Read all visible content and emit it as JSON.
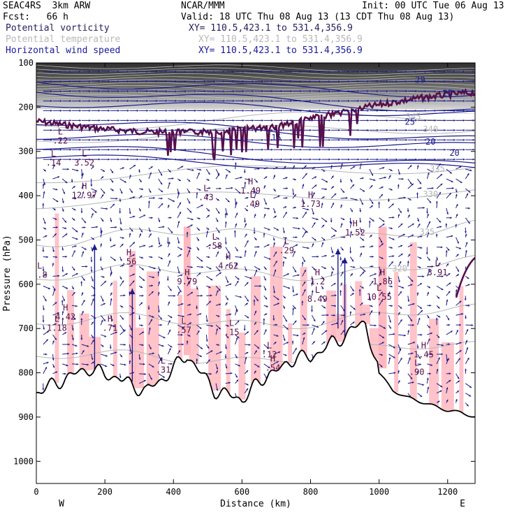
{
  "header": {
    "model": "SEAC4RS  3km ARW",
    "center": "NCAR/MMM",
    "init": "Init: 00 UTC Tue 06 Aug 13",
    "fcst": "Fcst:   66 h",
    "valid": "Valid: 18 UTC Thu 08 Aug 13 (13 CDT Thu 08 Aug 13)",
    "field1": "Potential vorticity",
    "field2": "Potential temperature",
    "field3": "Horizontal wind speed",
    "xy": "XY= 110.5,423.1 to 531.4,356.9"
  },
  "colors": {
    "pv": "#5a0f4a",
    "theta": "#b5b5b5",
    "wind": "#1a1a8c",
    "shade": "#ffb8c0",
    "stratosphere": "#3a3a3a"
  },
  "chart_data": {
    "type": "cross-section",
    "xlabel": "Distance (km)",
    "ylabel": "Pressure (hPa)",
    "xlim": [
      0,
      1280
    ],
    "ylim": [
      1050,
      100
    ],
    "x_ticks": [
      "0",
      "200",
      "400",
      "600",
      "800",
      "1000",
      "1200"
    ],
    "x_tick_values": [
      0,
      200,
      400,
      600,
      800,
      1000,
      1200
    ],
    "y_ticks": [
      "100",
      "200",
      "300",
      "400",
      "500",
      "600",
      "700",
      "800",
      "900",
      "1000"
    ],
    "y_tick_values": [
      100,
      200,
      300,
      400,
      500,
      600,
      700,
      800,
      900,
      1000
    ],
    "west_label": "W",
    "east_label": "E",
    "terrain": {
      "x": [
        0,
        40,
        80,
        120,
        160,
        200,
        240,
        280,
        320,
        360,
        400,
        440,
        480,
        520,
        560,
        600,
        640,
        680,
        720,
        760,
        800,
        840,
        880,
        920,
        960,
        980,
        1000,
        1040,
        1080,
        1120,
        1160,
        1200,
        1240,
        1280
      ],
      "p": [
        845,
        830,
        815,
        800,
        790,
        805,
        810,
        830,
        840,
        820,
        790,
        760,
        800,
        840,
        850,
        860,
        830,
        800,
        790,
        760,
        770,
        740,
        730,
        700,
        690,
        740,
        800,
        840,
        855,
        865,
        875,
        885,
        890,
        900
      ]
    },
    "theta_labels": [
      {
        "x": 1100,
        "p": 228,
        "text": "345"
      },
      {
        "x": 1150,
        "p": 256,
        "text": "340"
      },
      {
        "x": 1170,
        "p": 345,
        "text": "335"
      },
      {
        "x": 1150,
        "p": 403,
        "text": "330"
      },
      {
        "x": 1140,
        "p": 488,
        "text": "325"
      },
      {
        "x": 1060,
        "p": 571,
        "text": "320"
      }
    ],
    "speed_labels": [
      {
        "x": 1120,
        "p": 145,
        "text": "29"
      },
      {
        "x": 1200,
        "p": 175,
        "text": "25"
      },
      {
        "x": 1090,
        "p": 240,
        "text": "25"
      },
      {
        "x": 1150,
        "p": 285,
        "text": "20"
      },
      {
        "x": 1220,
        "p": 310,
        "text": "20"
      },
      {
        "x": 700,
        "p": 275,
        "text": "15"
      }
    ],
    "pv_extrema": [
      {
        "kind": "L",
        "x": 70,
        "p": 282,
        "value": ".22"
      },
      {
        "kind": "L",
        "x": 50,
        "p": 332,
        "value": ".14"
      },
      {
        "kind": "L",
        "x": 140,
        "p": 332,
        "value": "3.52"
      },
      {
        "kind": "H",
        "x": 140,
        "p": 405,
        "value": "12.97"
      },
      {
        "kind": "L",
        "x": 495,
        "p": 410,
        "value": ".43"
      },
      {
        "kind": "H",
        "x": 625,
        "p": 395,
        "value": "1.49"
      },
      {
        "kind": "L",
        "x": 630,
        "p": 425,
        "value": ".49"
      },
      {
        "kind": "H",
        "x": 800,
        "p": 425,
        "value": "1.73"
      },
      {
        "kind": "H",
        "x": 930,
        "p": 490,
        "value": "1.52"
      },
      {
        "kind": "L",
        "x": 520,
        "p": 520,
        "value": ".58"
      },
      {
        "kind": "L",
        "x": 730,
        "p": 530,
        "value": ".29"
      },
      {
        "kind": "H",
        "x": 270,
        "p": 555,
        "value": ".56"
      },
      {
        "kind": "H",
        "x": 560,
        "p": 565,
        "value": "4.62"
      },
      {
        "kind": "L",
        "x": 10,
        "p": 585,
        "value": "4.8"
      },
      {
        "kind": "H",
        "x": 440,
        "p": 600,
        "value": "9.79"
      },
      {
        "kind": "H",
        "x": 820,
        "p": 600,
        "value": "1.2"
      },
      {
        "kind": "L",
        "x": 820,
        "p": 640,
        "value": "8.49"
      },
      {
        "kind": "H",
        "x": 1010,
        "p": 600,
        "value": "1.86"
      },
      {
        "kind": "L",
        "x": 1000,
        "p": 635,
        "value": "10.55"
      },
      {
        "kind": "L",
        "x": 1170,
        "p": 580,
        "value": "3.91"
      },
      {
        "kind": "H",
        "x": 85,
        "p": 680,
        "value": "4.42"
      },
      {
        "kind": "L",
        "x": 60,
        "p": 705,
        "value": "1.18"
      },
      {
        "kind": "H",
        "x": 215,
        "p": 705,
        "value": ".71"
      },
      {
        "kind": "L",
        "x": 430,
        "p": 710,
        "value": ".57"
      },
      {
        "kind": "L",
        "x": 570,
        "p": 715,
        "value": ".15"
      },
      {
        "kind": "L",
        "x": 680,
        "p": 765,
        "value": ".12"
      },
      {
        "kind": "H",
        "x": 690,
        "p": 795,
        "value": ".54"
      },
      {
        "kind": "L",
        "x": 370,
        "p": 800,
        "value": ".31"
      },
      {
        "kind": "H",
        "x": 1130,
        "p": 765,
        "value": "1.45"
      },
      {
        "kind": "L",
        "x": 1110,
        "p": 805,
        "value": ".90"
      }
    ]
  }
}
